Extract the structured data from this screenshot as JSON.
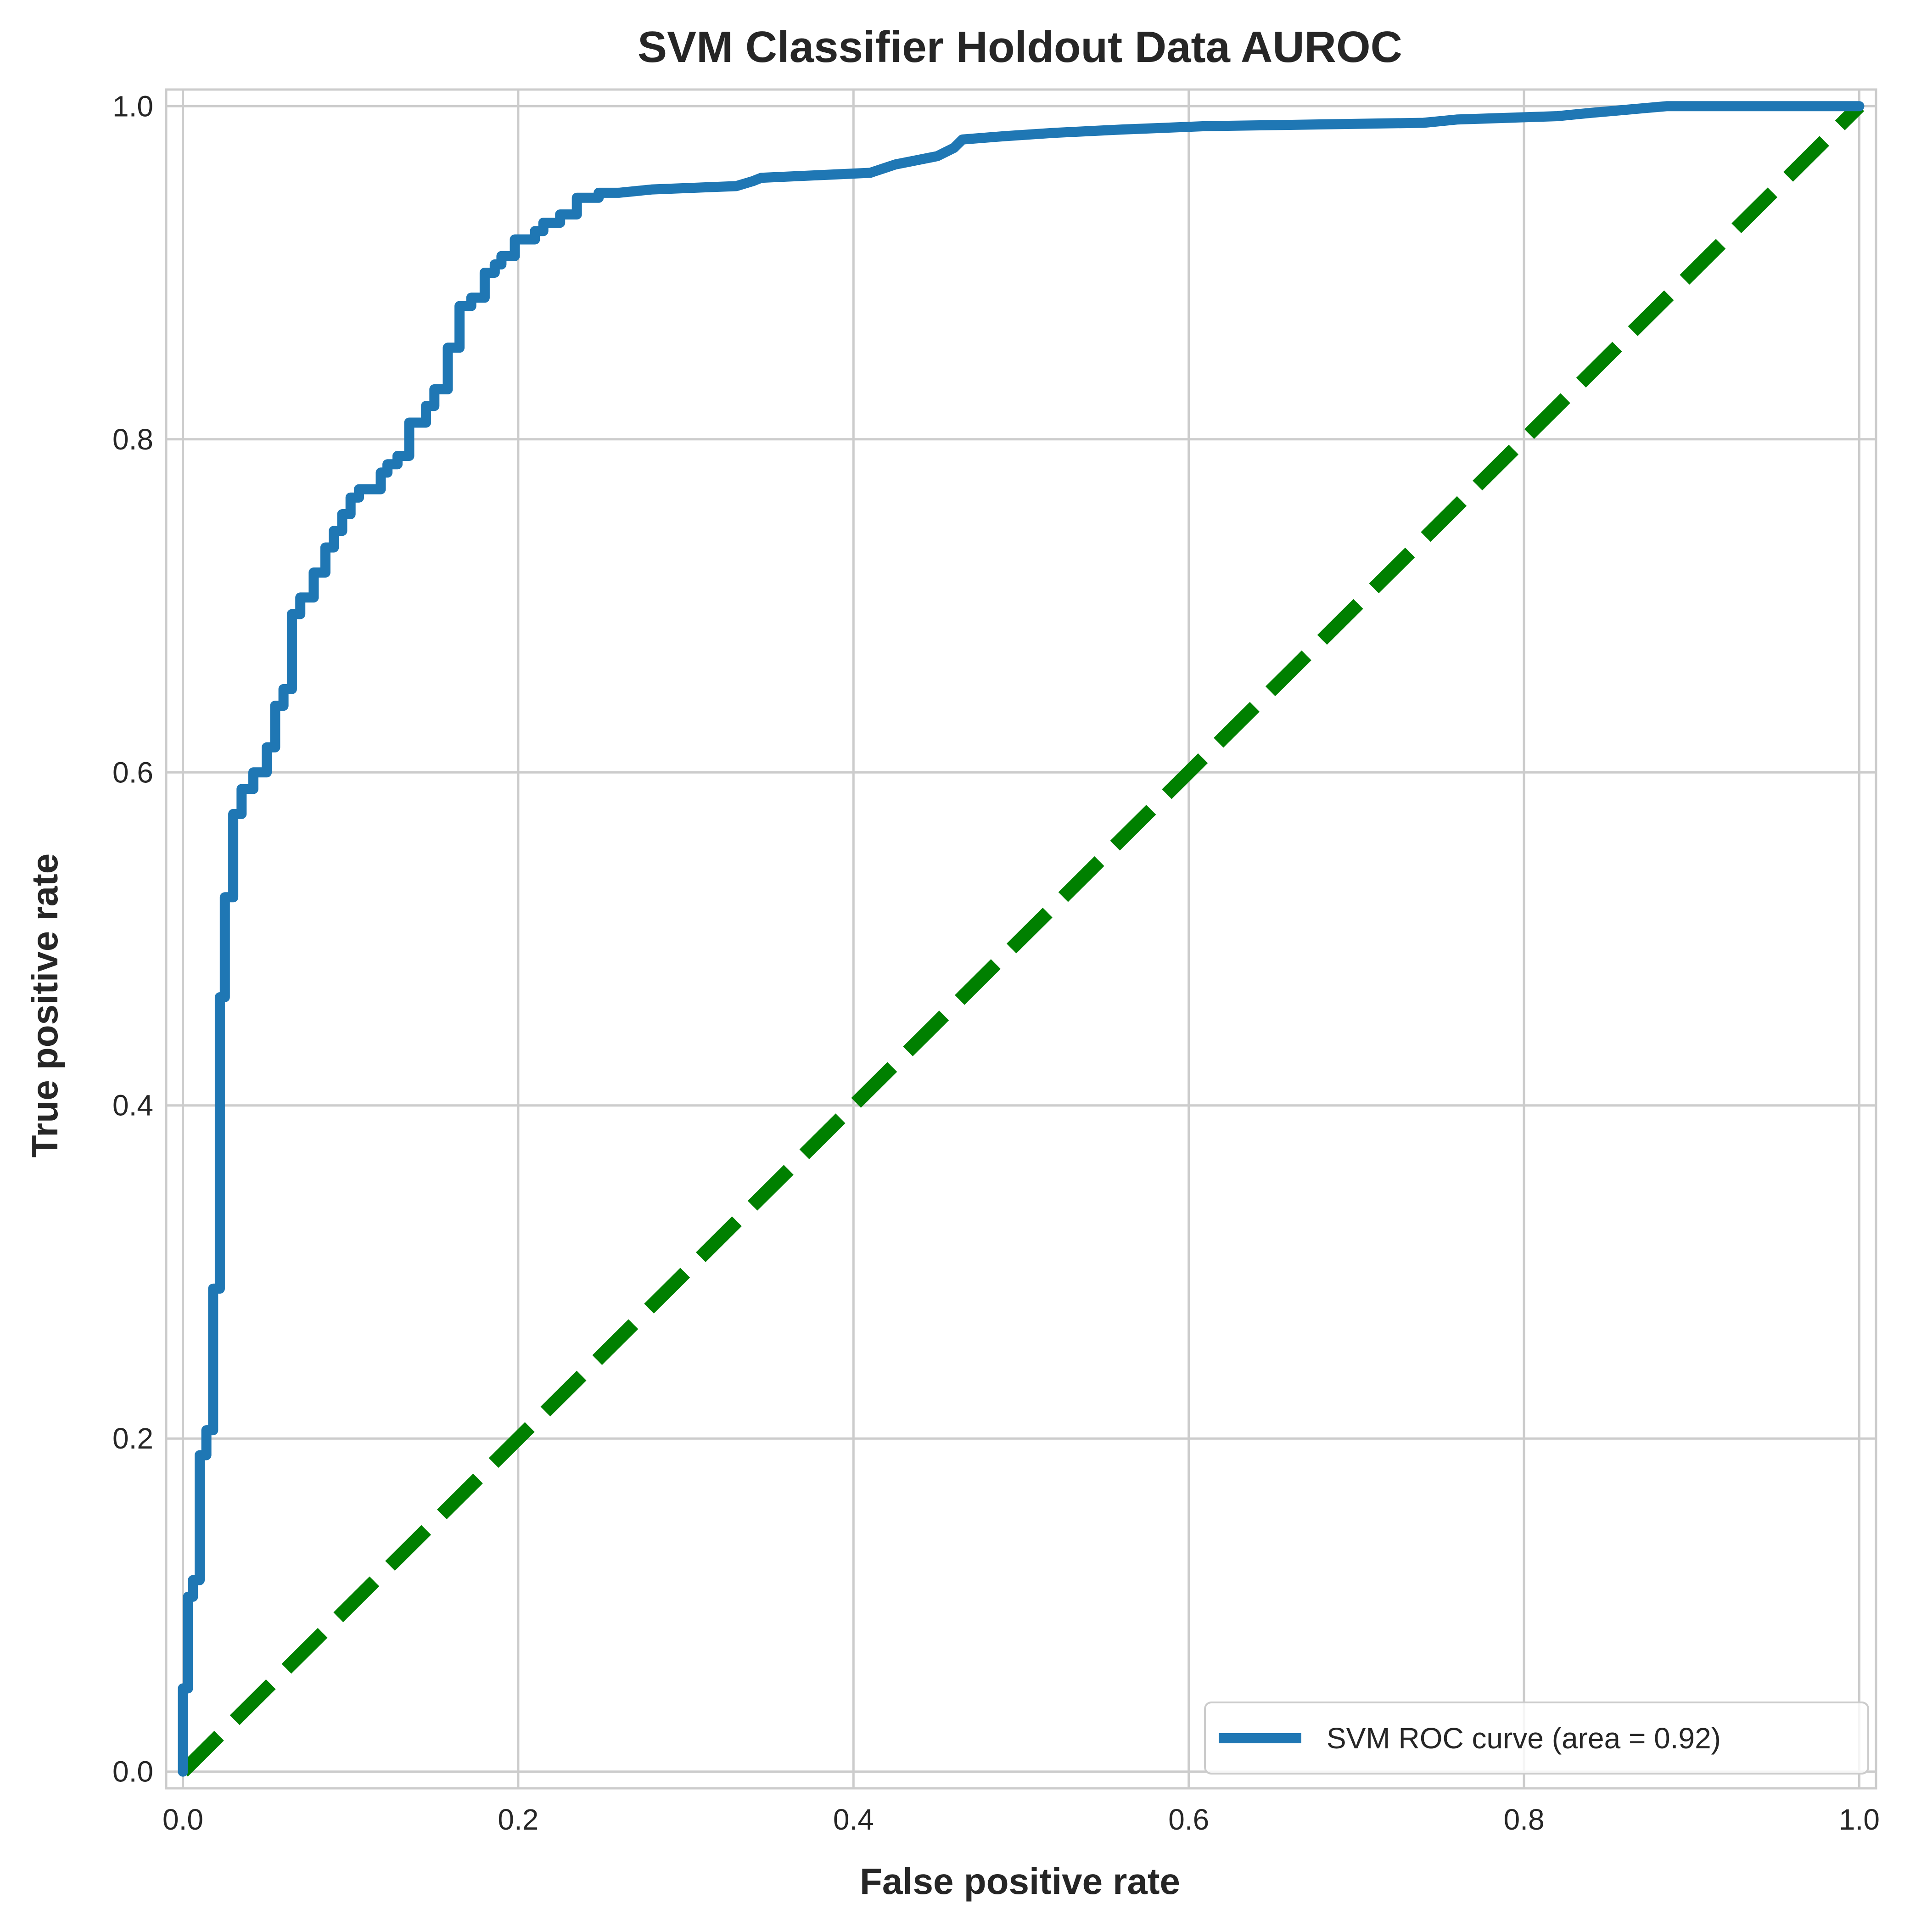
{
  "chart_data": {
    "type": "line",
    "title": "SVM Classifier Holdout Data AUROC",
    "xlabel": "False positive rate",
    "ylabel": "True positive rate",
    "xlim": [
      -0.01,
      1.01
    ],
    "ylim": [
      -0.01,
      1.01
    ],
    "x_ticks": [
      "0.0",
      "0.2",
      "0.4",
      "0.6",
      "0.8",
      "1.0"
    ],
    "y_ticks": [
      "0.0",
      "0.2",
      "0.4",
      "0.6",
      "0.8",
      "1.0"
    ],
    "grid": true,
    "legend_position": "lower right",
    "series": [
      {
        "name": "SVM ROC curve (area = 0.92)",
        "color": "#1f77b4",
        "style": "solid",
        "x": [
          0.0,
          0.0,
          0.003,
          0.003,
          0.006,
          0.006,
          0.01,
          0.01,
          0.014,
          0.014,
          0.018,
          0.018,
          0.022,
          0.022,
          0.025,
          0.025,
          0.03,
          0.03,
          0.035,
          0.035,
          0.042,
          0.042,
          0.05,
          0.05,
          0.055,
          0.055,
          0.06,
          0.06,
          0.065,
          0.065,
          0.07,
          0.07,
          0.078,
          0.078,
          0.085,
          0.085,
          0.09,
          0.09,
          0.095,
          0.095,
          0.1,
          0.1,
          0.105,
          0.105,
          0.118,
          0.118,
          0.122,
          0.122,
          0.128,
          0.128,
          0.135,
          0.135,
          0.145,
          0.145,
          0.15,
          0.15,
          0.158,
          0.158,
          0.165,
          0.165,
          0.172,
          0.172,
          0.18,
          0.18,
          0.186,
          0.186,
          0.19,
          0.19,
          0.198,
          0.198,
          0.21,
          0.21,
          0.215,
          0.215,
          0.225,
          0.225,
          0.235,
          0.235,
          0.248,
          0.248,
          0.26,
          0.28,
          0.28,
          0.33,
          0.33,
          0.34,
          0.34,
          0.345,
          0.345,
          0.41,
          0.41,
          0.425,
          0.425,
          0.45,
          0.45,
          0.46,
          0.46,
          0.465,
          0.465,
          0.49,
          0.49,
          0.52,
          0.52,
          0.56,
          0.56,
          0.61,
          0.61,
          0.74,
          0.74,
          0.76,
          0.76,
          0.82,
          0.82,
          0.84,
          0.84,
          0.885,
          0.885,
          1.0
        ],
        "y": [
          0.0,
          0.05,
          0.05,
          0.105,
          0.105,
          0.115,
          0.115,
          0.19,
          0.19,
          0.205,
          0.205,
          0.29,
          0.29,
          0.465,
          0.465,
          0.525,
          0.525,
          0.575,
          0.575,
          0.59,
          0.59,
          0.6,
          0.6,
          0.615,
          0.615,
          0.64,
          0.64,
          0.65,
          0.65,
          0.695,
          0.695,
          0.705,
          0.705,
          0.72,
          0.72,
          0.735,
          0.735,
          0.745,
          0.745,
          0.755,
          0.755,
          0.765,
          0.765,
          0.77,
          0.77,
          0.78,
          0.78,
          0.785,
          0.785,
          0.79,
          0.79,
          0.81,
          0.81,
          0.82,
          0.82,
          0.83,
          0.83,
          0.855,
          0.855,
          0.88,
          0.88,
          0.885,
          0.885,
          0.9,
          0.9,
          0.905,
          0.905,
          0.91,
          0.91,
          0.92,
          0.92,
          0.925,
          0.925,
          0.93,
          0.93,
          0.935,
          0.935,
          0.945,
          0.945,
          0.948,
          0.948,
          0.95,
          0.95,
          0.952,
          0.952,
          0.955,
          0.955,
          0.957,
          0.957,
          0.96,
          0.96,
          0.965,
          0.965,
          0.97,
          0.97,
          0.975,
          0.975,
          0.98,
          0.98,
          0.982,
          0.982,
          0.984,
          0.984,
          0.986,
          0.986,
          0.988,
          0.988,
          0.99,
          0.99,
          0.992,
          0.992,
          0.994,
          0.994,
          0.996,
          0.996,
          1.0,
          1.0,
          1.0
        ]
      },
      {
        "name": "",
        "color": "#008000",
        "style": "dashed",
        "x": [
          0.0,
          1.0
        ],
        "y": [
          0.0,
          1.0
        ]
      }
    ]
  }
}
